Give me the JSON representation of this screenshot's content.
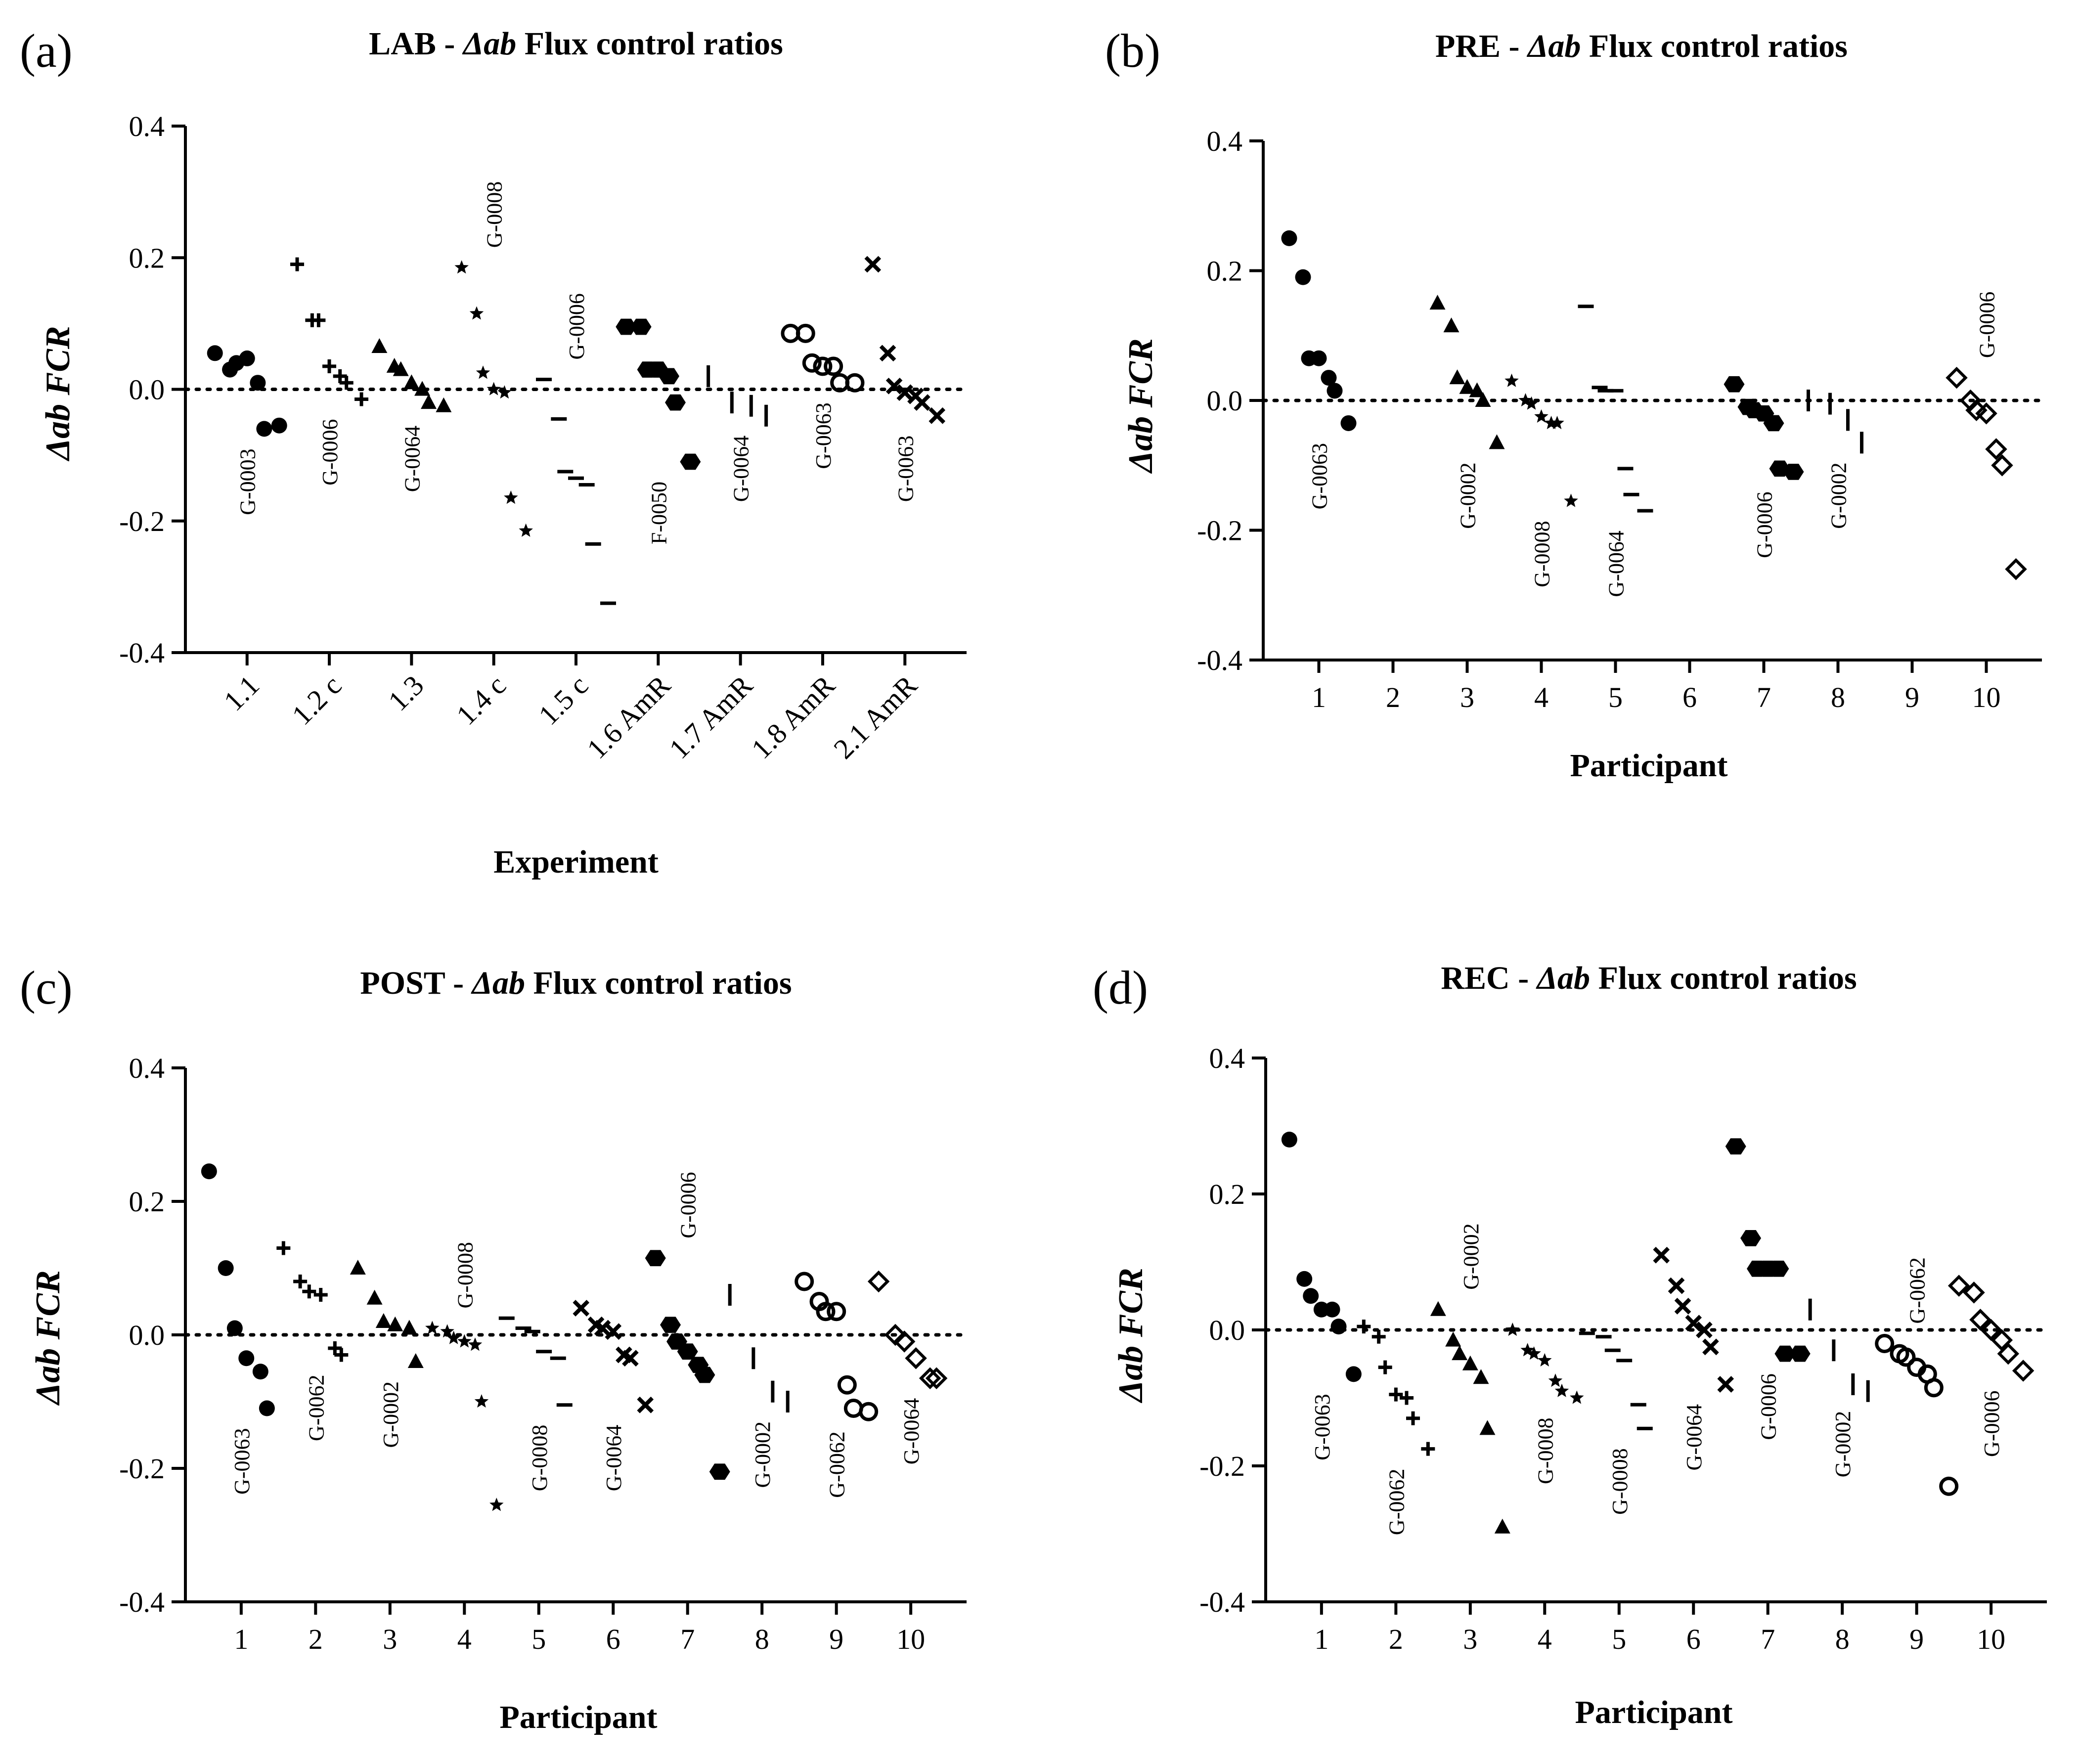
{
  "figure": {
    "panels": [
      {
        "id": "a",
        "letter": "(a)",
        "title_prefix": "LAB - ",
        "title_delta": "Δab",
        "title_suffix": " Flux control ratios"
      },
      {
        "id": "b",
        "letter": "(b)",
        "title_prefix": "PRE - ",
        "title_delta": "Δab",
        "title_suffix": " Flux control ratios"
      },
      {
        "id": "c",
        "letter": "(c)",
        "title_prefix": "POST - ",
        "title_delta": "Δab",
        "title_suffix": " Flux control ratios"
      },
      {
        "id": "d",
        "letter": "(d)",
        "title_prefix": "REC - ",
        "title_delta": "Δab",
        "title_suffix": " Flux control ratios"
      }
    ],
    "ylabel": "Δab FCR",
    "colors": {
      "marker": "#000000",
      "background": "#ffffff"
    }
  },
  "chart_data": [
    {
      "type": "scatter",
      "title": "LAB - Δab Flux control ratios",
      "xlabel": "Experiment",
      "ylabel": "Δab FCR",
      "ylim": [
        -0.4,
        0.4
      ],
      "yticks": [
        "0.4",
        "0.2",
        "0.0",
        "-0.2",
        "-0.4"
      ],
      "reference_line": 0.0,
      "categories": [
        "1.1",
        "1.2 c",
        "1.3",
        "1.4 c",
        "1.5 c",
        "1.6 AmR",
        "1.7 AmR",
        "1.8 AmR",
        "2.1 AmR"
      ],
      "series": [
        {
          "category": "1.1",
          "marker": "circle",
          "values": [
            0.055,
            0.03,
            0.04,
            0.047,
            0.01,
            -0.06,
            -0.055
          ],
          "annotation": "G-0003"
        },
        {
          "category": "1.2 c",
          "marker": "plus",
          "values": [
            0.19,
            0.105,
            0.105,
            0.035,
            0.02,
            0.01,
            -0.015
          ],
          "annotation": "G-0006"
        },
        {
          "category": "1.3",
          "marker": "triangle",
          "values": [
            0.065,
            0.035,
            0.03,
            0.01,
            0.0,
            -0.02,
            -0.025
          ],
          "annotation": "G-0064"
        },
        {
          "category": "1.4 c",
          "marker": "star",
          "values": [
            0.185,
            0.115,
            0.025,
            0.0,
            -0.005,
            -0.165,
            -0.215
          ],
          "annotation": "G-0008"
        },
        {
          "category": "1.5 c",
          "marker": "dash",
          "values": [
            0.015,
            -0.045,
            -0.125,
            -0.135,
            -0.145,
            -0.235,
            -0.325
          ],
          "annotation": "G-0006"
        },
        {
          "category": "1.6 AmR",
          "marker": "hexagon",
          "values": [
            0.095,
            0.095,
            0.03,
            0.03,
            0.02,
            -0.02,
            -0.11
          ],
          "annotation": "F-0050"
        },
        {
          "category": "1.7 AmR",
          "marker": "vline",
          "values": [
            0.02,
            -0.02,
            -0.025,
            -0.04
          ],
          "annotation": "G-0064"
        },
        {
          "category": "1.8 AmR",
          "marker": "open-circle",
          "values": [
            0.085,
            0.085,
            0.04,
            0.035,
            0.035,
            0.01,
            0.01
          ],
          "annotation": "G-0063"
        },
        {
          "category": "2.1 AmR",
          "marker": "x",
          "values": [
            0.19,
            0.055,
            0.005,
            -0.005,
            -0.01,
            -0.02,
            -0.04
          ],
          "annotation": "G-0063"
        }
      ]
    },
    {
      "type": "scatter",
      "title": "PRE - Δab Flux control ratios",
      "xlabel": "Participant",
      "ylabel": "Δab FCR",
      "ylim": [
        -0.4,
        0.4
      ],
      "yticks": [
        "0.4",
        "0.2",
        "0.0",
        "-0.2",
        "-0.4"
      ],
      "reference_line": 0.0,
      "categories": [
        "1",
        "2",
        "3",
        "4",
        "5",
        "6",
        "7",
        "8",
        "9",
        "10"
      ],
      "series": [
        {
          "category": "1",
          "marker": "circle",
          "values": [
            0.25,
            0.19,
            0.065,
            0.065,
            0.035,
            0.015,
            -0.035
          ],
          "annotation": "G-0063"
        },
        {
          "category": "3",
          "marker": "triangle",
          "values": [
            0.15,
            0.115,
            0.035,
            0.02,
            0.015,
            0.0,
            -0.065
          ],
          "annotation": "G-0002"
        },
        {
          "category": "4",
          "marker": "star",
          "values": [
            0.03,
            0.0,
            -0.005,
            -0.025,
            -0.035,
            -0.035,
            -0.155
          ],
          "annotation": "G-0008"
        },
        {
          "category": "5",
          "marker": "dash",
          "values": [
            0.145,
            0.02,
            0.015,
            0.015,
            -0.105,
            -0.145,
            -0.17
          ],
          "annotation": "G-0064"
        },
        {
          "category": "7",
          "marker": "hexagon",
          "values": [
            0.025,
            -0.01,
            -0.015,
            -0.02,
            -0.035,
            -0.105,
            -0.11
          ],
          "annotation": "G-0006"
        },
        {
          "category": "8",
          "marker": "vline",
          "values": [
            0.0,
            -0.005,
            -0.03,
            -0.065
          ],
          "annotation": "G-0002"
        },
        {
          "category": "10",
          "marker": "open-diamond",
          "values": [
            0.035,
            0.0,
            -0.015,
            -0.02,
            -0.075,
            -0.1,
            -0.26
          ],
          "annotation": "G-0006"
        }
      ]
    },
    {
      "type": "scatter",
      "title": "POST - Δab Flux control ratios",
      "xlabel": "Participant",
      "ylabel": "Δab FCR",
      "ylim": [
        -0.4,
        0.4
      ],
      "yticks": [
        "0.4",
        "0.2",
        "0.0",
        "-0.2",
        "-0.4"
      ],
      "reference_line": 0.0,
      "categories": [
        "1",
        "2",
        "3",
        "4",
        "5",
        "6",
        "7",
        "8",
        "9",
        "10"
      ],
      "series": [
        {
          "category": "1",
          "marker": "circle",
          "values": [
            0.245,
            0.1,
            0.01,
            -0.035,
            -0.055,
            -0.11
          ],
          "annotation": "G-0063"
        },
        {
          "category": "2",
          "marker": "plus",
          "values": [
            0.13,
            0.08,
            0.065,
            0.06,
            -0.02,
            -0.03
          ],
          "annotation": "G-0062"
        },
        {
          "category": "3",
          "marker": "triangle",
          "values": [
            0.1,
            0.055,
            0.02,
            0.015,
            0.01,
            -0.04
          ],
          "annotation": "G-0002"
        },
        {
          "category": "4",
          "marker": "star",
          "values": [
            0.01,
            0.005,
            -0.005,
            -0.01,
            -0.015,
            -0.1,
            -0.255
          ],
          "annotation": "G-0008"
        },
        {
          "category": "5",
          "marker": "dash",
          "values": [
            0.025,
            0.01,
            0.005,
            -0.025,
            -0.035,
            -0.105
          ],
          "annotation": "G-0008"
        },
        {
          "category": "6",
          "marker": "x",
          "values": [
            0.04,
            0.015,
            0.01,
            0.005,
            -0.03,
            -0.035,
            -0.105
          ],
          "annotation": "G-0064"
        },
        {
          "category": "7",
          "marker": "hexagon",
          "values": [
            0.115,
            0.015,
            -0.01,
            -0.025,
            -0.045,
            -0.06,
            -0.205
          ],
          "annotation": "G-0006"
        },
        {
          "category": "8",
          "marker": "vline",
          "values": [
            0.06,
            -0.035,
            -0.085,
            -0.1
          ],
          "annotation": "G-0002"
        },
        {
          "category": "9",
          "marker": "open-circle",
          "values": [
            0.08,
            0.05,
            0.035,
            0.035,
            -0.075,
            -0.11,
            -0.115
          ],
          "annotation": "G-0062"
        },
        {
          "category": "10",
          "marker": "open-diamond",
          "values": [
            0.08,
            0.0,
            -0.01,
            -0.035,
            -0.065,
            -0.065
          ],
          "annotation": "G-0064"
        }
      ]
    },
    {
      "type": "scatter",
      "title": "REC - Δab Flux control ratios",
      "xlabel": "Participant",
      "ylabel": "Δab FCR",
      "ylim": [
        -0.4,
        0.4
      ],
      "yticks": [
        "0.4",
        "0.2",
        "0.0",
        "-0.2",
        "-0.4"
      ],
      "reference_line": 0.0,
      "categories": [
        "1",
        "2",
        "3",
        "4",
        "5",
        "6",
        "7",
        "8",
        "9",
        "10"
      ],
      "series": [
        {
          "category": "1",
          "marker": "circle",
          "values": [
            0.28,
            0.075,
            0.05,
            0.03,
            0.03,
            0.005,
            -0.065
          ],
          "annotation": "G-0063"
        },
        {
          "category": "2",
          "marker": "plus",
          "values": [
            0.005,
            -0.01,
            -0.055,
            -0.095,
            -0.1,
            -0.13,
            -0.175
          ],
          "annotation": "G-0062"
        },
        {
          "category": "3",
          "marker": "triangle",
          "values": [
            0.03,
            -0.015,
            -0.035,
            -0.05,
            -0.07,
            -0.145,
            -0.29
          ],
          "annotation": "G-0002"
        },
        {
          "category": "4",
          "marker": "star",
          "values": [
            0.0,
            -0.03,
            -0.035,
            -0.045,
            -0.075,
            -0.09,
            -0.1
          ],
          "annotation": "G-0008"
        },
        {
          "category": "5",
          "marker": "dash",
          "values": [
            -0.005,
            -0.01,
            -0.03,
            -0.045,
            -0.11,
            -0.145
          ],
          "annotation": "G-0008"
        },
        {
          "category": "6",
          "marker": "x",
          "values": [
            0.11,
            0.065,
            0.035,
            0.01,
            0.0,
            -0.025,
            -0.08
          ],
          "annotation": "G-0064"
        },
        {
          "category": "7",
          "marker": "hexagon",
          "values": [
            0.27,
            0.135,
            0.09,
            0.09,
            0.09,
            -0.035,
            -0.035
          ],
          "annotation": "G-0006"
        },
        {
          "category": "8",
          "marker": "vline",
          "values": [
            0.03,
            -0.03,
            -0.08,
            -0.09
          ],
          "annotation": "G-0002"
        },
        {
          "category": "9",
          "marker": "open-circle",
          "values": [
            -0.02,
            -0.035,
            -0.04,
            -0.055,
            -0.065,
            -0.085,
            -0.23
          ],
          "annotation": "G-0062"
        },
        {
          "category": "10",
          "marker": "open-diamond",
          "values": [
            0.065,
            0.055,
            0.015,
            0.0,
            -0.015,
            -0.035,
            -0.06
          ],
          "annotation": "G-0006"
        }
      ]
    }
  ]
}
